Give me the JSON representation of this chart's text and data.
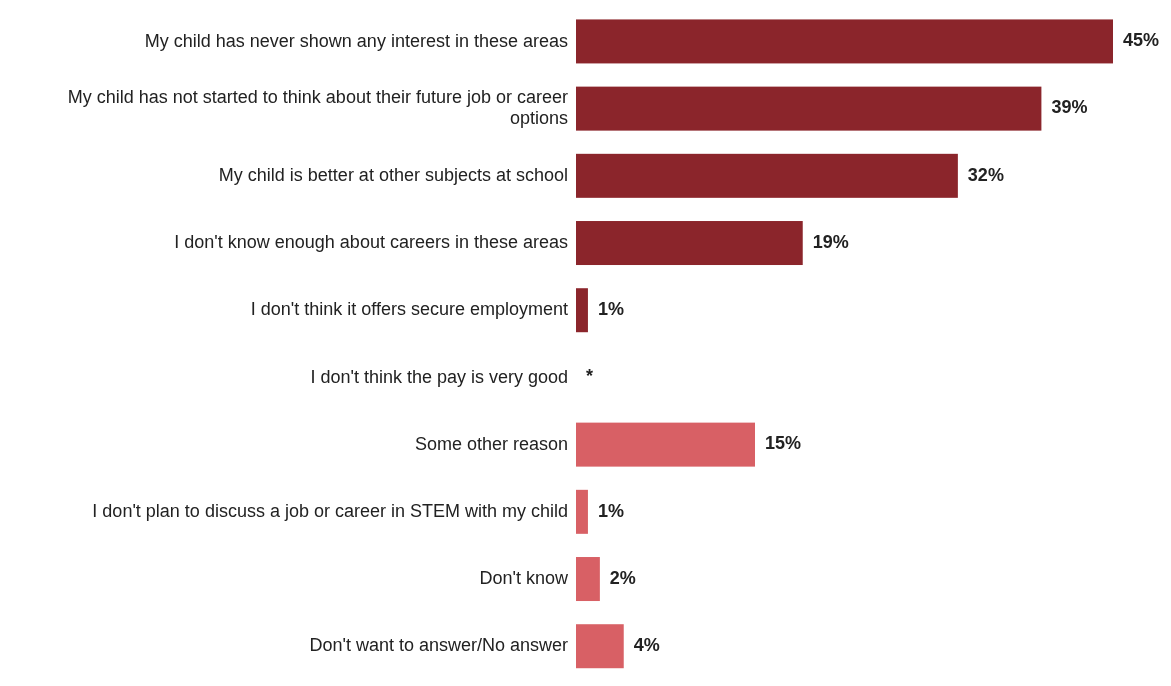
{
  "chart_data": {
    "type": "bar",
    "orientation": "horizontal",
    "categories": [
      "My child has never shown any interest in these areas",
      "My child has not started to think about their future job or career options",
      "My child is better at other subjects at school",
      "I don't know enough about careers in these areas",
      "I don't think it offers secure employment",
      "I don't think the pay is very good",
      "Some other reason",
      "I don't plan to discuss a job or career in STEM with my child",
      "Don't know",
      "Don't want to answer/No answer"
    ],
    "values": [
      45,
      39,
      32,
      19,
      1,
      0,
      15,
      1,
      2,
      4
    ],
    "value_labels": [
      "45%",
      "39%",
      "32%",
      "19%",
      "1%",
      "*",
      "15%",
      "1%",
      "2%",
      "4%"
    ],
    "colors": [
      "#8b252b",
      "#8b252b",
      "#8b252b",
      "#8b252b",
      "#8b252b",
      "#8b252b",
      "#d86065",
      "#d86065",
      "#d86065",
      "#d86065"
    ],
    "grid": false,
    "legend": false
  }
}
